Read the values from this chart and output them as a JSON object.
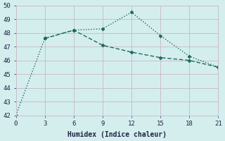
{
  "line1_x": [
    0,
    3,
    6,
    9,
    12,
    15,
    18,
    21
  ],
  "line1_y": [
    42.0,
    47.6,
    48.2,
    48.3,
    49.5,
    47.8,
    46.3,
    45.5
  ],
  "line2_x": [
    3,
    6,
    9,
    12,
    15,
    18,
    21
  ],
  "line2_y": [
    47.6,
    48.2,
    47.1,
    46.6,
    46.2,
    46.0,
    45.5
  ],
  "color": "#1a6b5a",
  "bg_color": "#d4eeee",
  "grid_color": "#c8bece",
  "xlabel": "Humidex (Indice chaleur)",
  "xlim": [
    0,
    21
  ],
  "ylim": [
    42,
    50
  ],
  "xticks": [
    0,
    3,
    6,
    9,
    12,
    15,
    18,
    21
  ],
  "yticks": [
    42,
    43,
    44,
    45,
    46,
    47,
    48,
    49,
    50
  ]
}
